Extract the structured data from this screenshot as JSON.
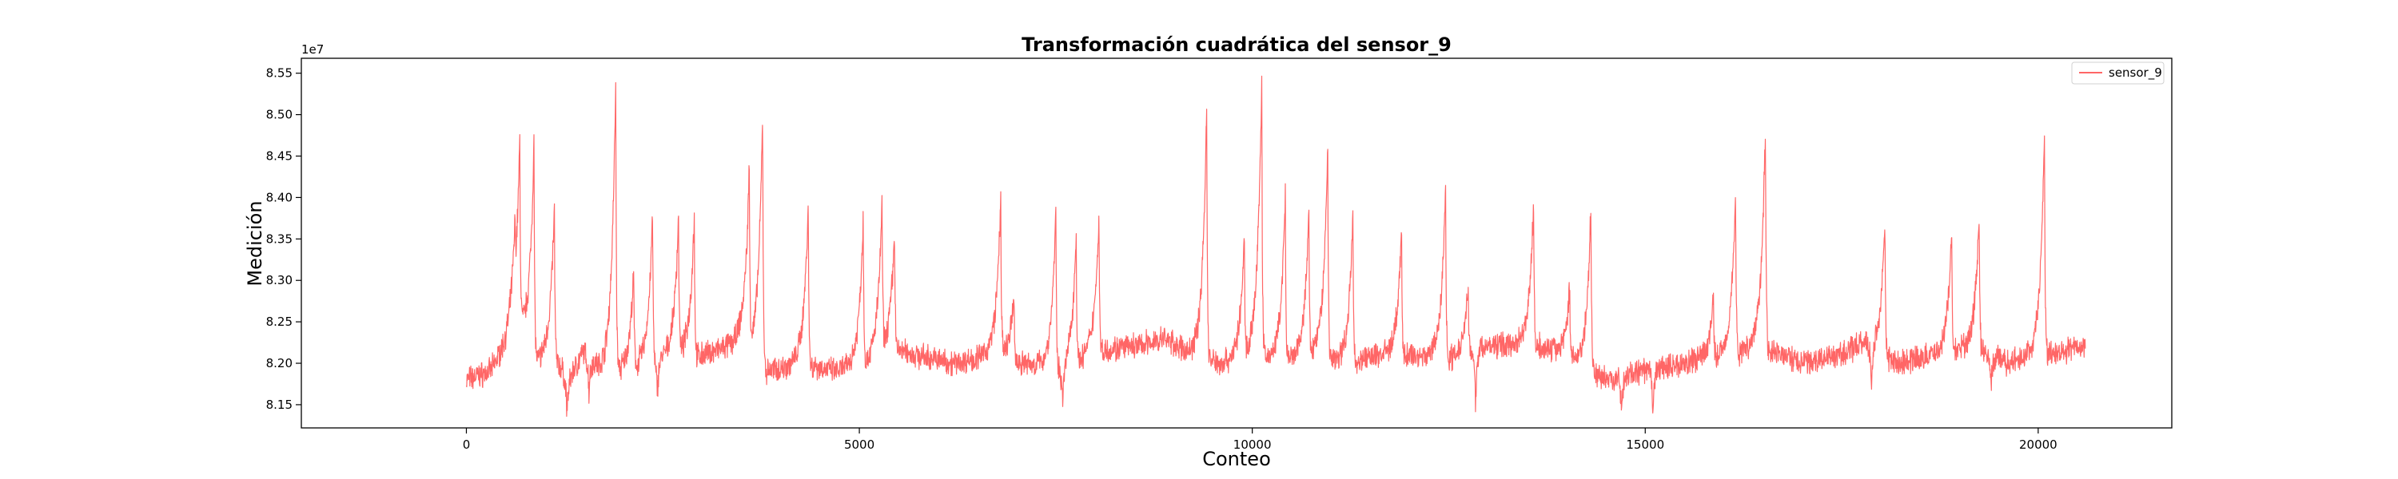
{
  "chart_data": {
    "type": "line",
    "title": "Transformación cuadrática del sensor_9",
    "xlabel": "Conteo",
    "ylabel": "Medición",
    "y_offset_text": "1e7",
    "xlim": [
      -2100,
      21700
    ],
    "ylim": [
      8.122,
      8.568
    ],
    "x_ticks": [
      0,
      5000,
      10000,
      15000,
      20000
    ],
    "x_tick_labels": [
      "0",
      "5000",
      "10000",
      "15000",
      "20000"
    ],
    "y_ticks": [
      8.15,
      8.2,
      8.25,
      8.3,
      8.35,
      8.4,
      8.45,
      8.5,
      8.55
    ],
    "y_tick_labels": [
      "8.15",
      "8.20",
      "8.25",
      "8.30",
      "8.35",
      "8.40",
      "8.45",
      "8.50",
      "8.55"
    ],
    "grid": false,
    "legend": "top-right",
    "color": "#ff6666",
    "series": [
      {
        "name": "sensor_9",
        "x_range": [
          0,
          20600
        ],
        "base_points": [
          [
            0,
            8.18
          ],
          [
            300,
            8.19
          ],
          [
            500,
            8.22
          ],
          [
            650,
            8.25
          ],
          [
            900,
            8.2
          ],
          [
            1100,
            8.21
          ],
          [
            1300,
            8.18
          ],
          [
            1500,
            8.215
          ],
          [
            1700,
            8.19
          ],
          [
            2000,
            8.19
          ],
          [
            2300,
            8.2
          ],
          [
            2700,
            8.21
          ],
          [
            3000,
            8.21
          ],
          [
            3500,
            8.225
          ],
          [
            3800,
            8.19
          ],
          [
            4300,
            8.2
          ],
          [
            4700,
            8.19
          ],
          [
            5100,
            8.2
          ],
          [
            5400,
            8.22
          ],
          [
            5700,
            8.21
          ],
          [
            6200,
            8.2
          ],
          [
            6700,
            8.21
          ],
          [
            7100,
            8.2
          ],
          [
            7600,
            8.19
          ],
          [
            8000,
            8.215
          ],
          [
            8500,
            8.22
          ],
          [
            8900,
            8.23
          ],
          [
            9200,
            8.21
          ],
          [
            9600,
            8.2
          ],
          [
            10000,
            8.21
          ],
          [
            10400,
            8.2
          ],
          [
            10800,
            8.21
          ],
          [
            11200,
            8.2
          ],
          [
            11600,
            8.21
          ],
          [
            12000,
            8.21
          ],
          [
            12500,
            8.205
          ],
          [
            13000,
            8.22
          ],
          [
            13500,
            8.225
          ],
          [
            14000,
            8.21
          ],
          [
            14500,
            8.18
          ],
          [
            15000,
            8.19
          ],
          [
            15500,
            8.2
          ],
          [
            16000,
            8.21
          ],
          [
            16500,
            8.22
          ],
          [
            17000,
            8.2
          ],
          [
            17500,
            8.21
          ],
          [
            17800,
            8.225
          ],
          [
            18200,
            8.2
          ],
          [
            18700,
            8.21
          ],
          [
            19200,
            8.22
          ],
          [
            19600,
            8.2
          ],
          [
            20000,
            8.21
          ],
          [
            20600,
            8.22
          ]
        ],
        "peaks": [
          [
            620,
            8.3
          ],
          [
            680,
            8.46
          ],
          [
            860,
            8.47
          ],
          [
            1120,
            8.385
          ],
          [
            1900,
            8.538
          ],
          [
            2130,
            8.31
          ],
          [
            2370,
            8.383
          ],
          [
            2700,
            8.378
          ],
          [
            2900,
            8.38
          ],
          [
            3600,
            8.425
          ],
          [
            3770,
            8.51
          ],
          [
            4350,
            8.4
          ],
          [
            5050,
            8.377
          ],
          [
            5290,
            8.39
          ],
          [
            5450,
            8.361
          ],
          [
            6800,
            8.402
          ],
          [
            6970,
            8.285
          ],
          [
            7500,
            8.385
          ],
          [
            7760,
            8.36
          ],
          [
            8050,
            8.382
          ],
          [
            9420,
            8.517
          ],
          [
            9900,
            8.345
          ],
          [
            10120,
            8.547
          ],
          [
            10420,
            8.405
          ],
          [
            10720,
            8.383
          ],
          [
            10960,
            8.47
          ],
          [
            11280,
            8.381
          ],
          [
            11900,
            8.361
          ],
          [
            12460,
            8.418
          ],
          [
            12750,
            8.303
          ],
          [
            13580,
            8.397
          ],
          [
            14040,
            8.292
          ],
          [
            14310,
            8.392
          ],
          [
            15870,
            8.28
          ],
          [
            16150,
            8.41
          ],
          [
            16530,
            8.493
          ],
          [
            18050,
            8.377
          ],
          [
            18900,
            8.361
          ],
          [
            19250,
            8.379
          ],
          [
            20080,
            8.48
          ]
        ],
        "dips": [
          [
            1280,
            8.14
          ],
          [
            1560,
            8.165
          ],
          [
            2430,
            8.165
          ],
          [
            7590,
            8.15
          ],
          [
            12840,
            8.155
          ],
          [
            14700,
            8.145
          ],
          [
            15100,
            8.145
          ],
          [
            17880,
            8.16
          ],
          [
            19400,
            8.17
          ]
        ]
      }
    ]
  }
}
